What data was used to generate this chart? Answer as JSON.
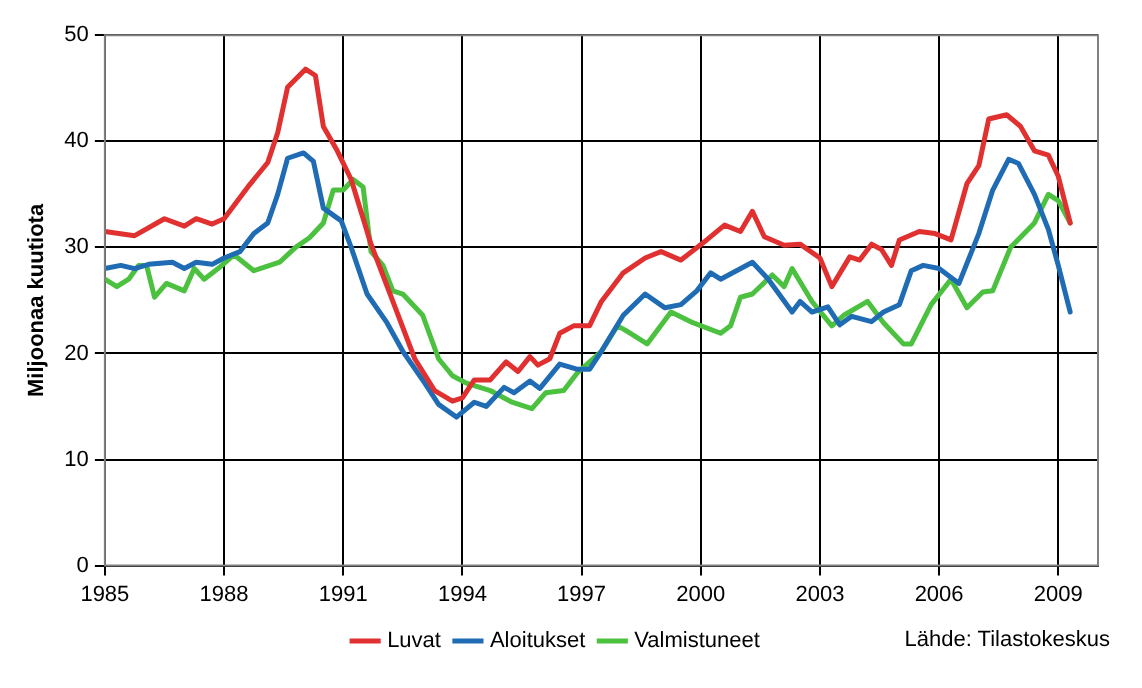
{
  "chart_data": {
    "type": "line",
    "ylabel": "Miljoonaa kuutiota",
    "xlim": [
      1985,
      2010
    ],
    "xticks": [
      1985,
      1988,
      1991,
      1994,
      1997,
      2000,
      2003,
      2006,
      2009
    ],
    "ylim": [
      0,
      50
    ],
    "yticks": [
      0,
      10,
      20,
      30,
      40,
      50
    ],
    "grid": true,
    "legend": "bottom",
    "marker": "none",
    "line_style": "solid",
    "annotations": [
      "Lähde: Tilastokeskus"
    ],
    "series": [
      {
        "name": "Luvat",
        "color": "#e03030",
        "x": [
          1985,
          1985.75,
          1986.5,
          1987,
          1987.3,
          1987.7,
          1988,
          1988.6,
          1989.1,
          1989.35,
          1989.6,
          1990.05,
          1990.3,
          1990.5,
          1990.85,
          1991.2,
          1991.7,
          1992.25,
          1992.8,
          1993.3,
          1993.75,
          1994,
          1994.3,
          1994.7,
          1995.1,
          1995.4,
          1995.7,
          1995.9,
          1996.2,
          1996.45,
          1996.8,
          1997.2,
          1997.5,
          1998.05,
          1998.6,
          1999,
          1999.5,
          2000.15,
          2000.6,
          2001,
          2001.3,
          2001.6,
          2002.1,
          2002.5,
          2003,
          2003.3,
          2003.75,
          2004,
          2004.3,
          2004.55,
          2004.8,
          2005,
          2005.5,
          2005.9,
          2006.3,
          2006.7,
          2007,
          2007.25,
          2007.7,
          2008.05,
          2008.4,
          2008.75,
          2009,
          2009.3
        ],
        "values": [
          31.5,
          31.1,
          32.7,
          32,
          32.7,
          32.2,
          32.7,
          35.7,
          38,
          40.8,
          45.1,
          46.8,
          46.2,
          41.4,
          39.1,
          36.4,
          30.3,
          24.9,
          19.5,
          16.5,
          15.5,
          15.8,
          17.5,
          17.5,
          19.2,
          18.3,
          19.7,
          18.9,
          19.5,
          21.9,
          22.6,
          22.6,
          24.9,
          27.6,
          29,
          29.6,
          28.8,
          30.7,
          32.1,
          31.5,
          33.4,
          31,
          30.2,
          30.3,
          29,
          26.3,
          29.1,
          28.8,
          30.3,
          29.8,
          28.3,
          30.7,
          31.5,
          31.3,
          30.7,
          36,
          37.7,
          42.1,
          42.5,
          41.4,
          39.1,
          38.7,
          36.7,
          32.3
        ]
      },
      {
        "name": "Aloitukset",
        "color": "#1f6cb4",
        "x": [
          1985,
          1985.4,
          1985.75,
          1986.1,
          1986.7,
          1987,
          1987.3,
          1987.7,
          1988,
          1988.4,
          1988.75,
          1989.1,
          1989.35,
          1989.6,
          1990,
          1990.25,
          1990.5,
          1990.95,
          1991.2,
          1991.6,
          1992.1,
          1992.5,
          1993,
          1993.4,
          1993.85,
          1994.3,
          1994.6,
          1995.05,
          1995.3,
          1995.7,
          1995.95,
          1996.45,
          1996.9,
          1997.2,
          1997.5,
          1998.05,
          1998.6,
          1999.1,
          1999.5,
          1999.9,
          2000.25,
          2000.5,
          2001.3,
          2001.7,
          2002.3,
          2002.5,
          2002.8,
          2003.2,
          2003.5,
          2003.8,
          2004.3,
          2004.6,
          2005,
          2005.3,
          2005.6,
          2006,
          2006.5,
          2007,
          2007.35,
          2007.75,
          2008,
          2008.4,
          2008.75,
          2009,
          2009.3
        ],
        "values": [
          28,
          28.3,
          28,
          28.4,
          28.6,
          28,
          28.6,
          28.4,
          29,
          29.6,
          31.3,
          32.3,
          35,
          38.4,
          38.9,
          38.1,
          33.7,
          32.5,
          30,
          25.6,
          22.9,
          20.2,
          17.5,
          15.2,
          14,
          15.4,
          15,
          16.8,
          16.3,
          17.4,
          16.7,
          19,
          18.5,
          18.5,
          20.2,
          23.6,
          25.6,
          24.3,
          24.6,
          25.9,
          27.6,
          27,
          28.6,
          27,
          23.9,
          24.9,
          23.9,
          24.4,
          22.7,
          23.5,
          23,
          23.9,
          24.6,
          27.8,
          28.3,
          28,
          26.6,
          31.3,
          35.4,
          38.3,
          37.9,
          35,
          31.7,
          28.3,
          23.9
        ]
      },
      {
        "name": "Valmistuneet",
        "color": "#4cc140",
        "x": [
          1985,
          1985.3,
          1985.6,
          1985.85,
          1986.05,
          1986.25,
          1986.55,
          1987,
          1987.25,
          1987.5,
          1987.85,
          1988.25,
          1988.75,
          1989.4,
          1989.8,
          1990.15,
          1990.5,
          1990.75,
          1991,
          1991.25,
          1991.5,
          1991.7,
          1992,
          1992.25,
          1992.5,
          1993,
          1993.4,
          1993.75,
          1994.1,
          1994.7,
          1995.25,
          1995.75,
          1996.1,
          1996.55,
          1996.9,
          1997.5,
          1997.9,
          1998.1,
          1998.65,
          1999.25,
          1999.8,
          2000.5,
          2000.75,
          2001,
          2001.3,
          2001.8,
          2002.1,
          2002.3,
          2002.8,
          2003.3,
          2003.6,
          2004.2,
          2004.6,
          2005.1,
          2005.3,
          2005.8,
          2006.3,
          2006.7,
          2007.1,
          2007.35,
          2007.8,
          2008.4,
          2008.75,
          2009,
          2009.3
        ],
        "values": [
          27,
          26.3,
          27,
          28.3,
          28.3,
          25.3,
          26.6,
          25.9,
          28,
          27,
          28,
          29.3,
          27.8,
          28.6,
          30,
          30.9,
          32.3,
          35.4,
          35.4,
          36.4,
          35.7,
          29.6,
          28.3,
          25.9,
          25.6,
          23.6,
          19.5,
          17.9,
          17.2,
          16.5,
          15.4,
          14.8,
          16.3,
          16.5,
          18.2,
          20.2,
          22.6,
          22.2,
          20.9,
          23.9,
          22.9,
          21.9,
          22.6,
          25.3,
          25.6,
          27.4,
          26.3,
          28,
          24.9,
          22.6,
          23.6,
          24.9,
          22.9,
          20.9,
          20.9,
          24.6,
          27,
          24.3,
          25.8,
          25.9,
          30,
          32.3,
          35,
          34.4,
          32.3
        ]
      }
    ]
  }
}
